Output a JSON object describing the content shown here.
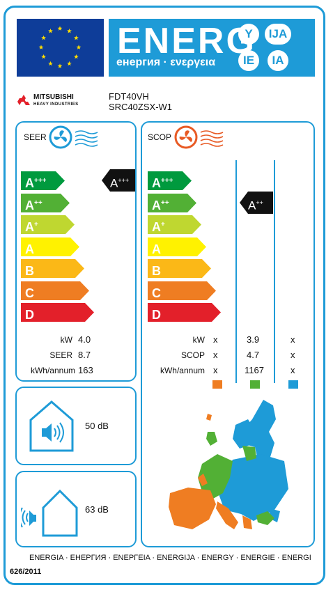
{
  "header": {
    "title": "ENERG",
    "subtitle": "енергия · ενεργεια",
    "lang_codes": [
      "Y",
      "IJA",
      "IE",
      "IA"
    ]
  },
  "brand": {
    "name_line1": "MITSUBISHI",
    "name_line2": "HEAVY INDUSTRIES",
    "model_indoor": "FDT40VH",
    "model_outdoor": "SRC40ZSX-W1"
  },
  "seer": {
    "label": "SEER",
    "scale": [
      {
        "letter": "A",
        "sup": "+++",
        "color": "#009a3e"
      },
      {
        "letter": "A",
        "sup": "++",
        "color": "#52b035"
      },
      {
        "letter": "A",
        "sup": "+",
        "color": "#bfd730"
      },
      {
        "letter": "A",
        "sup": "",
        "color": "#fff200"
      },
      {
        "letter": "B",
        "sup": "",
        "color": "#fbb817"
      },
      {
        "letter": "C",
        "sup": "",
        "color": "#ef7d22"
      },
      {
        "letter": "D",
        "sup": "",
        "color": "#e3202a"
      }
    ],
    "rating": {
      "letter": "A",
      "sup": "+++"
    },
    "values": [
      {
        "label": "kW",
        "value": "4.0"
      },
      {
        "label": "SEER",
        "value": "8.7"
      },
      {
        "label": "kWh/annum",
        "value": "163"
      }
    ]
  },
  "scop": {
    "label": "SCOP",
    "scale": [
      {
        "letter": "A",
        "sup": "+++",
        "color": "#009a3e"
      },
      {
        "letter": "A",
        "sup": "++",
        "color": "#52b035"
      },
      {
        "letter": "A",
        "sup": "+",
        "color": "#bfd730"
      },
      {
        "letter": "A",
        "sup": "",
        "color": "#fff200"
      },
      {
        "letter": "B",
        "sup": "",
        "color": "#fbb817"
      },
      {
        "letter": "C",
        "sup": "",
        "color": "#ef7d22"
      },
      {
        "letter": "D",
        "sup": "",
        "color": "#e3202a"
      }
    ],
    "rating": {
      "letter": "A",
      "sup": "++"
    },
    "row_labels": [
      "kW",
      "SCOP",
      "kWh/annum"
    ],
    "columns": [
      {
        "values": [
          "x",
          "x",
          "x"
        ],
        "color": "#ef7d22"
      },
      {
        "values": [
          "3.9",
          "4.7",
          "1167"
        ],
        "color": "#52b035"
      },
      {
        "values": [
          "x",
          "x",
          "x"
        ],
        "color": "#1e9bd7"
      }
    ]
  },
  "noise": {
    "indoor": "50 dB",
    "outdoor": "63 dB"
  },
  "footer": {
    "languages": "ENERGIA · ЕНЕРГИЯ · ΕΝΕΡΓΕΙΑ · ENERGIJA · ENERGY · ENERGIE · ENERGI",
    "regulation": "626/2011"
  }
}
